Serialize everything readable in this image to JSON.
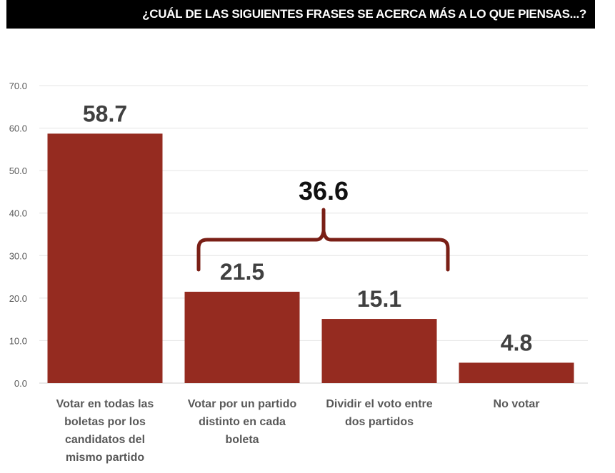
{
  "chart_data": {
    "type": "bar",
    "title": "¿CUÁL DE LAS SIGUIENTES FRASES SE ACERCA MÁS A LO QUE PIENSAS...?",
    "categories": [
      [
        "Votar en todas las",
        "boletas por los",
        "candidatos del",
        "mismo partido"
      ],
      [
        "Votar por un partido",
        "distinto en cada",
        "boleta"
      ],
      [
        "Dividir el voto entre",
        "dos partidos"
      ],
      [
        "No votar"
      ]
    ],
    "values": [
      58.7,
      21.5,
      15.1,
      4.8
    ],
    "data_labels": [
      "58.7",
      "21.5",
      "15.1",
      "4.8"
    ],
    "ylim": [
      0,
      70
    ],
    "yticks": [
      "0.0",
      "10.0",
      "20.0",
      "30.0",
      "40.0",
      "50.0",
      "60.0",
      "70.0"
    ],
    "grid": true,
    "bar_color": "#952b20",
    "annotation": {
      "label": "36.6",
      "spans_categories": [
        1,
        2
      ],
      "shape": "curly-brace",
      "color": "#7a1f16"
    }
  }
}
